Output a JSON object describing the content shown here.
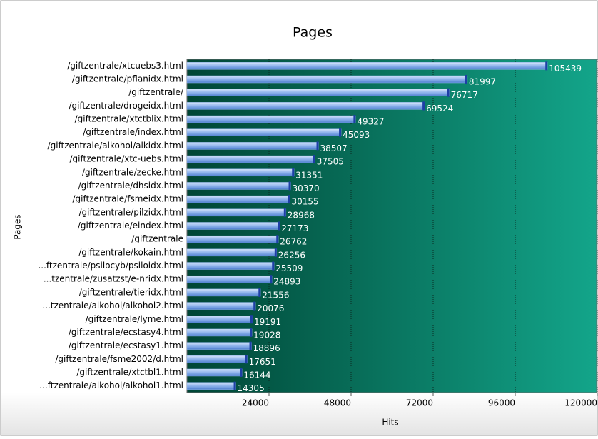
{
  "chart_data": {
    "type": "bar",
    "orientation": "horizontal",
    "title": "Pages",
    "x_label": "Hits",
    "y_label": "Pages",
    "categories": [
      "/giftzentrale/xtcuebs3.html",
      "/giftzentrale/pflanidx.html",
      "/giftzentrale/",
      "/giftzentrale/drogeidx.html",
      "/giftzentrale/xtctblix.html",
      "/giftzentrale/index.html",
      "/giftzentrale/alkohol/alkidx.html",
      "/giftzentrale/xtc-uebs.html",
      "/giftzentrale/zecke.html",
      "/giftzentrale/dhsidx.html",
      "/giftzentrale/fsmeidx.html",
      "/giftzentrale/pilzidx.html",
      "/giftzentrale/eindex.html",
      "/giftzentrale",
      "/giftzentrale/kokain.html",
      "...ftzentrale/psilocyb/psiloidx.html",
      "...tzentrale/zusatzst/e-nridx.html",
      "/giftzentrale/tieridx.html",
      "...tzentrale/alkohol/alkohol2.html",
      "/giftzentrale/lyme.html",
      "/giftzentrale/ecstasy4.html",
      "/giftzentrale/ecstasy1.html",
      "/giftzentrale/fsme2002/d.html",
      "/giftzentrale/xtctbl1.html",
      "...ftzentrale/alkohol/alkohol1.html"
    ],
    "values": [
      105439,
      81997,
      76717,
      69524,
      49327,
      45093,
      38507,
      37505,
      31351,
      30370,
      30155,
      28968,
      27173,
      26762,
      26256,
      25509,
      24893,
      21556,
      20076,
      19191,
      19028,
      18896,
      17651,
      16144,
      14305
    ],
    "color": "#8fb4ec",
    "xlim": [
      0,
      120000
    ],
    "xticks": [
      24000,
      48000,
      72000,
      96000,
      120000
    ],
    "grid": true
  }
}
